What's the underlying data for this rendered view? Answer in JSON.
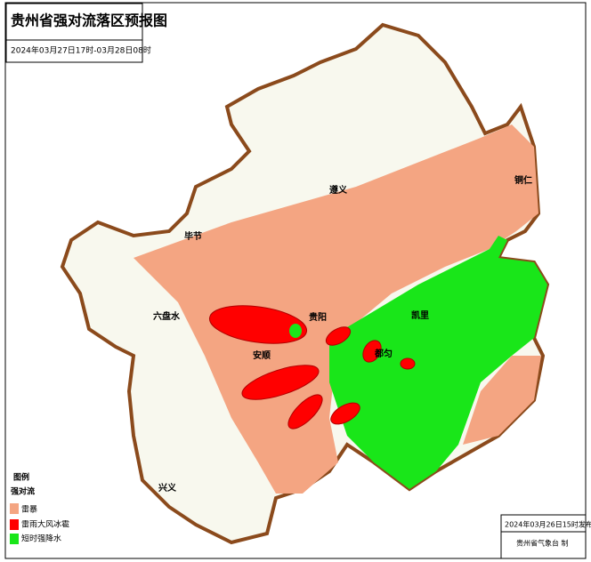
{
  "header": {
    "title": "贵州省强对流落区预报图",
    "time_range": "2024年03月27日17时-03月28日08时"
  },
  "cities": [
    {
      "name": "遵义"
    },
    {
      "name": "铜仁"
    },
    {
      "name": "毕节"
    },
    {
      "name": "六盘水"
    },
    {
      "name": "安顺"
    },
    {
      "name": "贵阳"
    },
    {
      "name": "凯里"
    },
    {
      "name": "都匀"
    },
    {
      "name": "兴义"
    }
  ],
  "legend": {
    "title": "图例",
    "subtitle": "强对流",
    "items": [
      {
        "label": "雷暴"
      },
      {
        "label": "雷雨大风冰雹"
      },
      {
        "label": "短时强降水"
      }
    ]
  },
  "footer": {
    "issued": "2024年03月26日15时发布",
    "agency": "贵州省气象台 制"
  }
}
